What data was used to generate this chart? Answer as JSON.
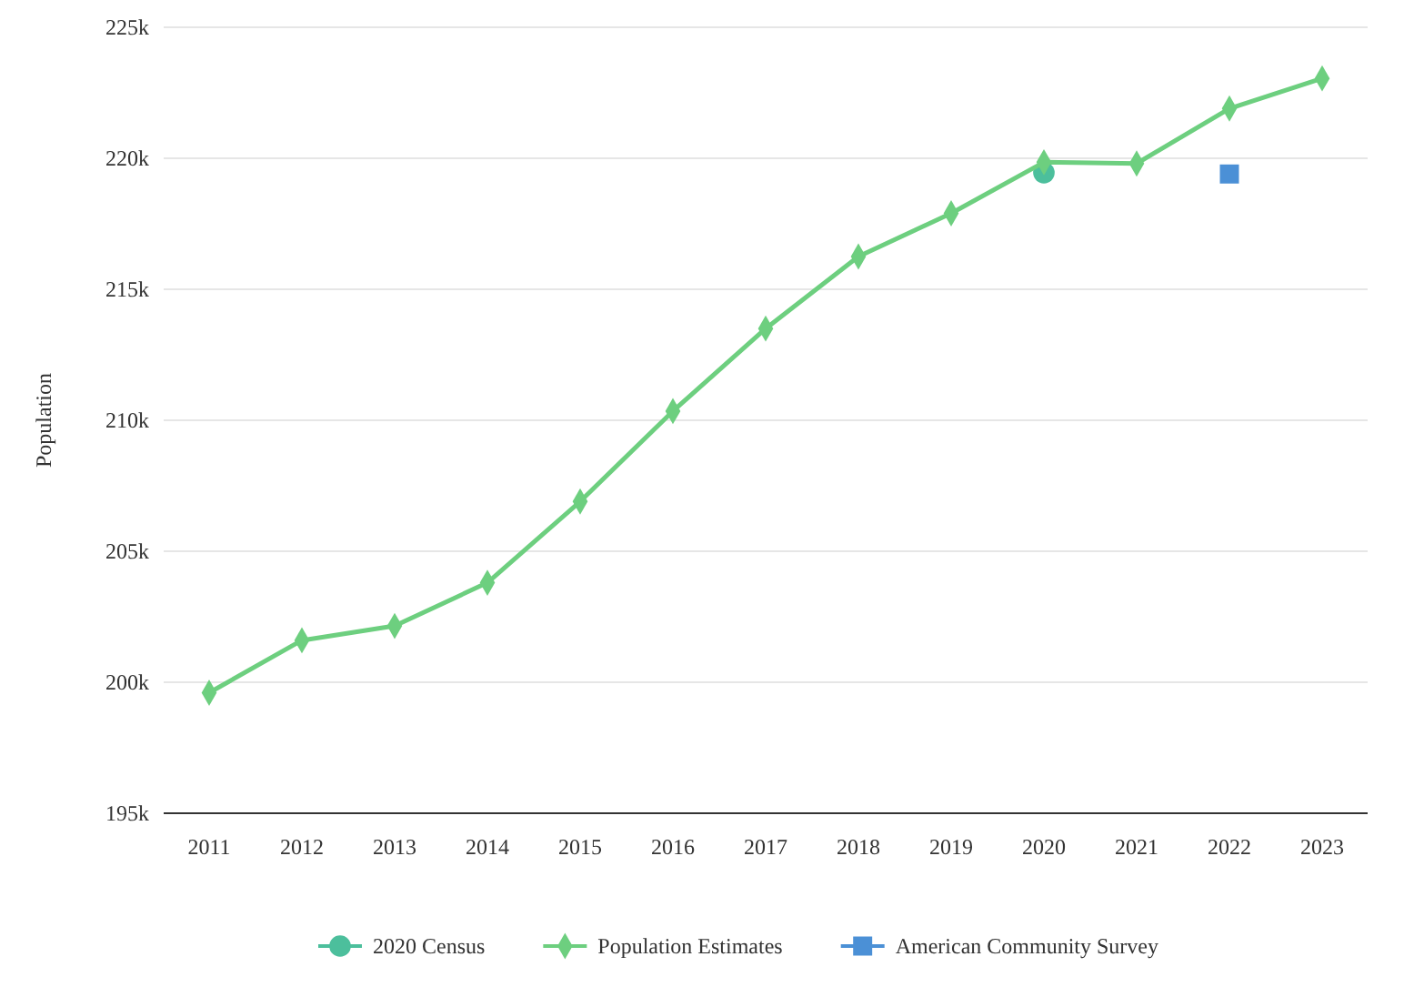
{
  "chart_data": {
    "type": "line",
    "ylabel": "Population",
    "categories": [
      "2011",
      "2012",
      "2013",
      "2014",
      "2015",
      "2016",
      "2017",
      "2018",
      "2019",
      "2020",
      "2021",
      "2022",
      "2023"
    ],
    "ylim": [
      195000,
      225000
    ],
    "yticks": [
      {
        "value": 195000,
        "label": "195k"
      },
      {
        "value": 200000,
        "label": "200k"
      },
      {
        "value": 205000,
        "label": "205k"
      },
      {
        "value": 210000,
        "label": "210k"
      },
      {
        "value": 215000,
        "label": "215k"
      },
      {
        "value": 220000,
        "label": "220k"
      },
      {
        "value": 225000,
        "label": "225k"
      }
    ],
    "grid": "y",
    "legend": "bottom",
    "series": [
      {
        "name": "2020 Census",
        "type": "scatter",
        "marker": "circle",
        "color": "#4cbf9c",
        "values": [
          null,
          null,
          null,
          null,
          null,
          null,
          null,
          null,
          null,
          219450,
          null,
          null,
          null
        ]
      },
      {
        "name": "Population Estimates",
        "marker": "diamond",
        "color": "#6dcf7f",
        "values": [
          199600,
          201600,
          202150,
          203800,
          206900,
          210350,
          213500,
          216250,
          217900,
          219850,
          219800,
          221900,
          223050
        ]
      },
      {
        "name": "American Community Survey",
        "type": "scatter",
        "marker": "square",
        "color": "#4b90d6",
        "values": [
          null,
          null,
          null,
          null,
          null,
          null,
          null,
          null,
          null,
          null,
          null,
          219400,
          null
        ]
      }
    ]
  }
}
